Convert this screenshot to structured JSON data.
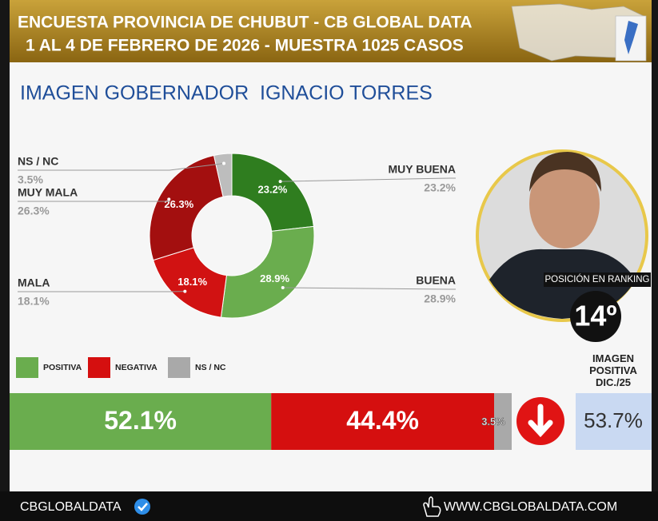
{
  "header": {
    "line1": "ENCUESTA PROVINCIA DE CHUBUT - CB GLOBAL DATA",
    "line2": "1 AL 4 DE FEBRERO DE 2026 - MUESTRA 1025 CASOS"
  },
  "title": "IMAGEN GOBERNADOR  IGNACIO TORRES",
  "chart_data": [
    {
      "type": "donut",
      "categories": [
        "MUY BUENA",
        "BUENA",
        "MALA",
        "MUY MALA",
        "NS / NC"
      ],
      "values": [
        23.2,
        28.9,
        18.1,
        26.3,
        3.5
      ],
      "value_labels": [
        "23.2%",
        "28.9%",
        "18.1%",
        "26.3%",
        "3.5%"
      ],
      "colors": [
        "#2f7d1f",
        "#6aad4e",
        "#d11212",
        "#a30f0f",
        "#bdbdbd"
      ]
    },
    {
      "type": "stacked-bar",
      "series": [
        {
          "name": "POSITIVA",
          "color": "#6aad4e",
          "values": [
            52.1
          ],
          "value_labels": [
            "52.1%"
          ]
        },
        {
          "name": "NEGATIVA",
          "color": "#d50f0f",
          "values": [
            44.4
          ],
          "value_labels": [
            "44.4%"
          ]
        },
        {
          "name": "NS / NC",
          "color": "#a9a9a9",
          "values": [
            3.5
          ],
          "value_labels": [
            "3.5%"
          ]
        }
      ],
      "xlim": [
        0,
        100
      ]
    }
  ],
  "previous": {
    "title": "IMAGEN POSITIVA DIC./25",
    "value": 53.7,
    "value_label": "53.7%"
  },
  "ranking": {
    "label": "POSICIÓN EN RANKING",
    "position": "14º"
  },
  "footer": {
    "brand": "CBGLOBALDATA",
    "website": "WWW.CBGLOBALDATA.COM"
  }
}
